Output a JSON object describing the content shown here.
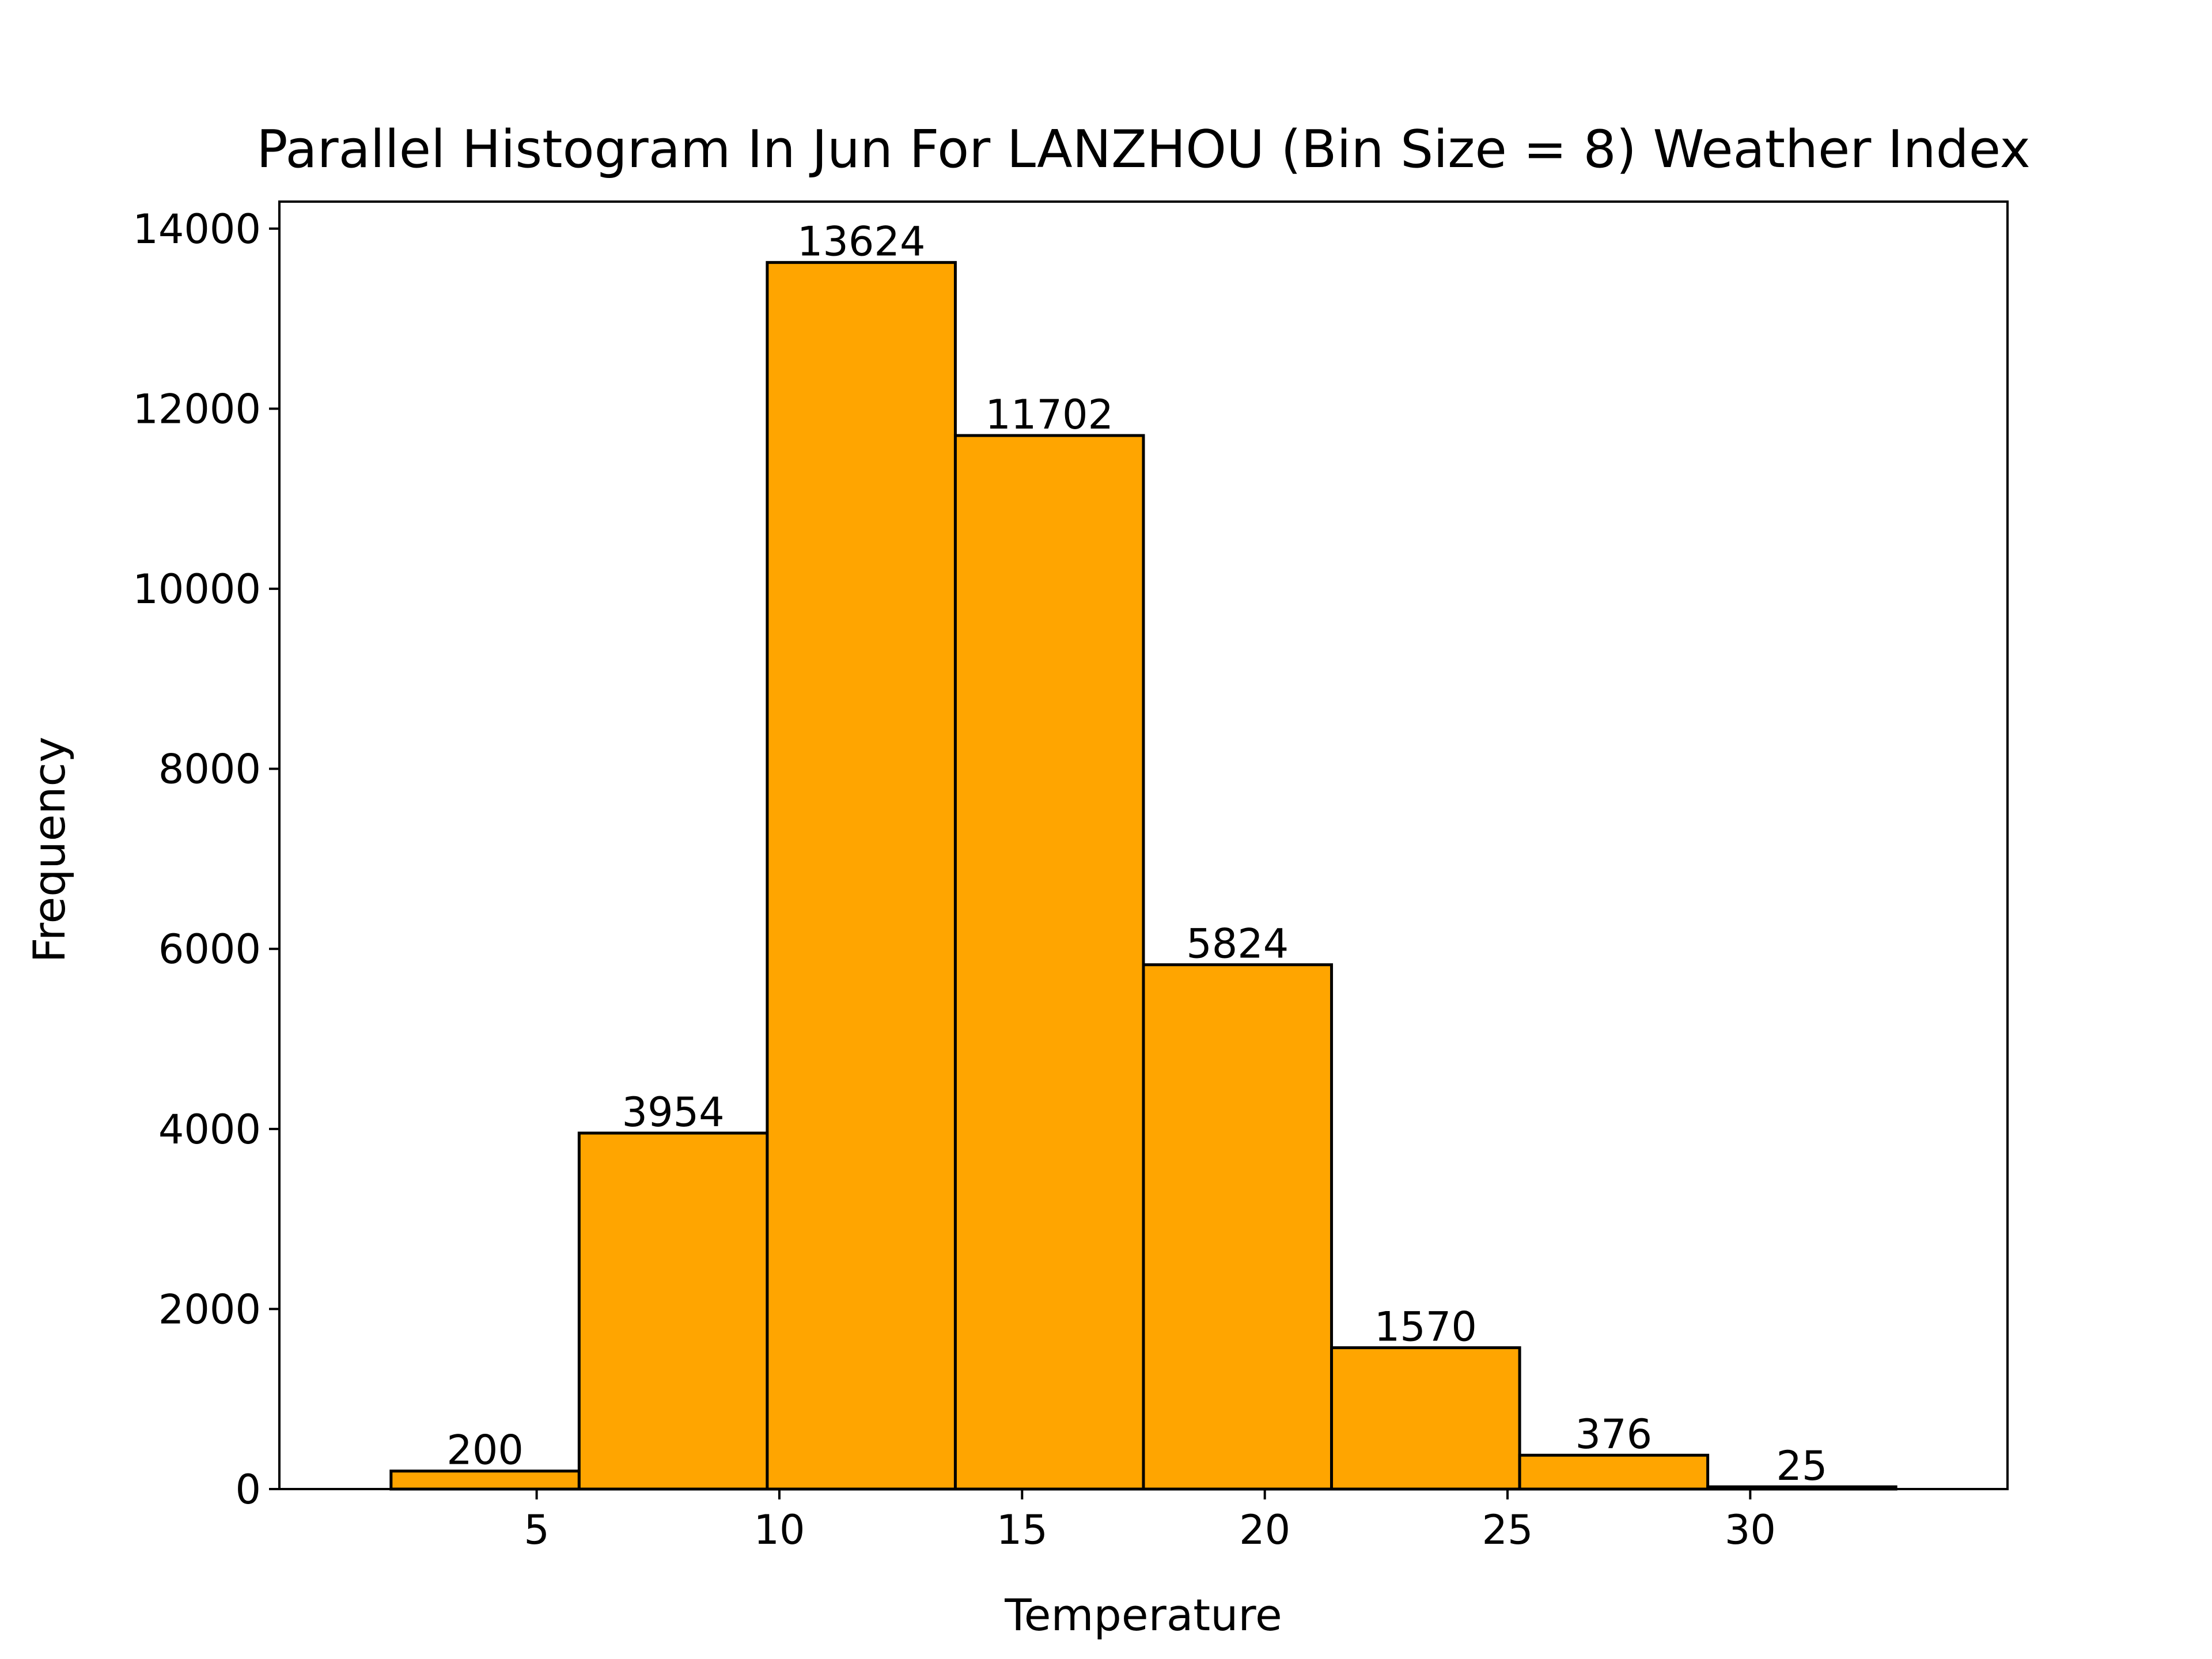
{
  "chart_data": {
    "type": "bar",
    "title": "Parallel Histogram In Jun For LANZHOU (Bin Size = 8) Weather Index",
    "xlabel": "Temperature",
    "ylabel": "Frequency",
    "bin_edges": [
      2.0,
      5.875,
      9.75,
      13.625,
      17.5,
      21.375,
      25.25,
      29.125,
      33.0
    ],
    "values": [
      200,
      3954,
      13624,
      11702,
      5824,
      1570,
      376,
      25
    ],
    "value_labels": [
      "200",
      "3954",
      "13624",
      "11702",
      "5824",
      "1570",
      "376",
      "25"
    ],
    "xlim": [
      -0.3,
      35.3
    ],
    "ylim": [
      0,
      14300
    ],
    "xticks": [
      5,
      10,
      15,
      20,
      25,
      30
    ],
    "yticks": [
      0,
      2000,
      4000,
      6000,
      8000,
      10000,
      12000,
      14000
    ],
    "bar_color": "#ffa500",
    "edge_color": "#000000",
    "grid": false,
    "legend": "none"
  }
}
